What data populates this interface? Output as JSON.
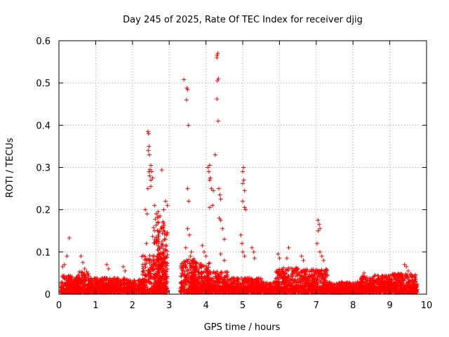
{
  "chart_data": {
    "type": "scatter",
    "title": "Day 245 of 2025, Rate Of TEC Index for receiver djig",
    "xlabel": "GPS time / hours",
    "ylabel": "ROTI / TECUs",
    "xlim": [
      0,
      10
    ],
    "ylim": [
      0,
      0.6
    ],
    "xticks": [
      0,
      1,
      2,
      3,
      4,
      5,
      6,
      7,
      8,
      9,
      10
    ],
    "yticks": [
      0,
      0.1,
      0.2,
      0.3,
      0.4,
      0.5,
      0.6
    ],
    "xtick_labels": [
      "0",
      "1",
      "2",
      "3",
      "4",
      "5",
      "6",
      "7",
      "8",
      "9",
      "10"
    ],
    "ytick_labels": [
      "0",
      "0.1",
      "0.2",
      "0.3",
      "0.4",
      "0.5",
      "0.6"
    ],
    "grid": true,
    "marker": "+",
    "color": "#ff0000",
    "gap_hours": [
      3.0,
      3.3
    ],
    "series": [
      {
        "name": "ROTI",
        "points": [
          [
            0.28,
            0.133
          ],
          [
            0.22,
            0.09
          ],
          [
            0.15,
            0.07
          ],
          [
            0.1,
            0.065
          ],
          [
            0.6,
            0.09
          ],
          [
            0.65,
            0.075
          ],
          [
            0.7,
            0.06
          ],
          [
            1.3,
            0.07
          ],
          [
            1.35,
            0.06
          ],
          [
            1.75,
            0.065
          ],
          [
            1.8,
            0.055
          ],
          [
            2.35,
            0.2
          ],
          [
            2.4,
            0.19
          ],
          [
            2.38,
            0.12
          ],
          [
            2.42,
            0.385
          ],
          [
            2.44,
            0.38
          ],
          [
            2.45,
            0.35
          ],
          [
            2.43,
            0.34
          ],
          [
            2.46,
            0.33
          ],
          [
            2.5,
            0.305
          ],
          [
            2.48,
            0.295
          ],
          [
            2.52,
            0.29
          ],
          [
            2.45,
            0.29
          ],
          [
            2.47,
            0.28
          ],
          [
            2.5,
            0.27
          ],
          [
            2.55,
            0.275
          ],
          [
            2.42,
            0.25
          ],
          [
            2.5,
            0.255
          ],
          [
            2.6,
            0.21
          ],
          [
            2.65,
            0.19
          ],
          [
            2.7,
            0.195
          ],
          [
            2.75,
            0.185
          ],
          [
            2.8,
            0.294
          ],
          [
            2.9,
            0.22
          ],
          [
            2.85,
            0.2
          ],
          [
            2.95,
            0.21
          ],
          [
            2.6,
            0.15
          ],
          [
            2.7,
            0.14
          ],
          [
            2.8,
            0.16
          ],
          [
            2.9,
            0.13
          ],
          [
            2.65,
            0.12
          ],
          [
            2.75,
            0.11
          ],
          [
            2.85,
            0.1
          ],
          [
            3.4,
            0.508
          ],
          [
            3.48,
            0.488
          ],
          [
            3.5,
            0.484
          ],
          [
            3.47,
            0.46
          ],
          [
            3.52,
            0.4
          ],
          [
            3.5,
            0.25
          ],
          [
            3.53,
            0.22
          ],
          [
            3.5,
            0.155
          ],
          [
            3.55,
            0.14
          ],
          [
            3.45,
            0.11
          ],
          [
            3.6,
            0.1
          ],
          [
            3.58,
            0.09
          ],
          [
            3.9,
            0.115
          ],
          [
            3.95,
            0.1
          ],
          [
            4.0,
            0.09
          ],
          [
            4.05,
            0.3
          ],
          [
            4.1,
            0.305
          ],
          [
            4.08,
            0.29
          ],
          [
            4.12,
            0.275
          ],
          [
            4.1,
            0.27
          ],
          [
            4.15,
            0.25
          ],
          [
            4.2,
            0.245
          ],
          [
            4.1,
            0.205
          ],
          [
            4.18,
            0.21
          ],
          [
            4.25,
            0.33
          ],
          [
            4.3,
            0.56
          ],
          [
            4.32,
            0.57
          ],
          [
            4.3,
            0.565
          ],
          [
            4.34,
            0.51
          ],
          [
            4.31,
            0.505
          ],
          [
            4.3,
            0.462
          ],
          [
            4.33,
            0.41
          ],
          [
            4.35,
            0.25
          ],
          [
            4.38,
            0.235
          ],
          [
            4.4,
            0.225
          ],
          [
            4.36,
            0.18
          ],
          [
            4.4,
            0.175
          ],
          [
            4.45,
            0.155
          ],
          [
            4.5,
            0.13
          ],
          [
            4.4,
            0.095
          ],
          [
            4.5,
            0.08
          ],
          [
            5.02,
            0.3
          ],
          [
            5.0,
            0.29
          ],
          [
            5.03,
            0.27
          ],
          [
            5.0,
            0.262
          ],
          [
            5.05,
            0.245
          ],
          [
            5.0,
            0.22
          ],
          [
            5.05,
            0.205
          ],
          [
            5.08,
            0.2
          ],
          [
            4.95,
            0.14
          ],
          [
            4.98,
            0.12
          ],
          [
            5.0,
            0.1
          ],
          [
            5.05,
            0.09
          ],
          [
            5.25,
            0.11
          ],
          [
            5.3,
            0.1
          ],
          [
            5.32,
            0.085
          ],
          [
            5.96,
            0.095
          ],
          [
            6.0,
            0.085
          ],
          [
            6.25,
            0.11
          ],
          [
            6.2,
            0.085
          ],
          [
            6.6,
            0.09
          ],
          [
            6.65,
            0.08
          ],
          [
            7.05,
            0.175
          ],
          [
            7.08,
            0.165
          ],
          [
            7.1,
            0.155
          ],
          [
            7.05,
            0.15
          ],
          [
            7.02,
            0.12
          ],
          [
            7.1,
            0.1
          ],
          [
            7.15,
            0.09
          ],
          [
            7.2,
            0.08
          ],
          [
            8.3,
            0.05
          ],
          [
            8.6,
            0.045
          ],
          [
            9.4,
            0.07
          ],
          [
            9.45,
            0.065
          ],
          [
            9.5,
            0.055
          ]
        ],
        "dense_bands": [
          {
            "x": [
              0.05,
              0.55
            ],
            "y_max": 0.04
          },
          {
            "x": [
              0.5,
              0.85
            ],
            "y_max": 0.05
          },
          {
            "x": [
              0.85,
              1.85
            ],
            "y_max": 0.035
          },
          {
            "x": [
              1.85,
              2.3
            ],
            "y_max": 0.03
          },
          {
            "x": [
              2.25,
              2.95
            ],
            "y_max": 0.09
          },
          {
            "x": [
              2.55,
              2.95
            ],
            "y_max": 0.18
          },
          {
            "x": [
              3.3,
              3.75
            ],
            "y_max": 0.08
          },
          {
            "x": [
              3.6,
              4.1
            ],
            "y_max": 0.07
          },
          {
            "x": [
              4.0,
              4.6
            ],
            "y_max": 0.05
          },
          {
            "x": [
              4.6,
              5.5
            ],
            "y_max": 0.035
          },
          {
            "x": [
              5.5,
              6.0
            ],
            "y_max": 0.025
          },
          {
            "x": [
              5.9,
              6.5
            ],
            "y_max": 0.06
          },
          {
            "x": [
              6.5,
              7.3
            ],
            "y_max": 0.055
          },
          {
            "x": [
              7.3,
              8.2
            ],
            "y_max": 0.025
          },
          {
            "x": [
              8.2,
              9.0
            ],
            "y_max": 0.04
          },
          {
            "x": [
              9.0,
              9.75
            ],
            "y_max": 0.045
          }
        ]
      }
    ]
  }
}
